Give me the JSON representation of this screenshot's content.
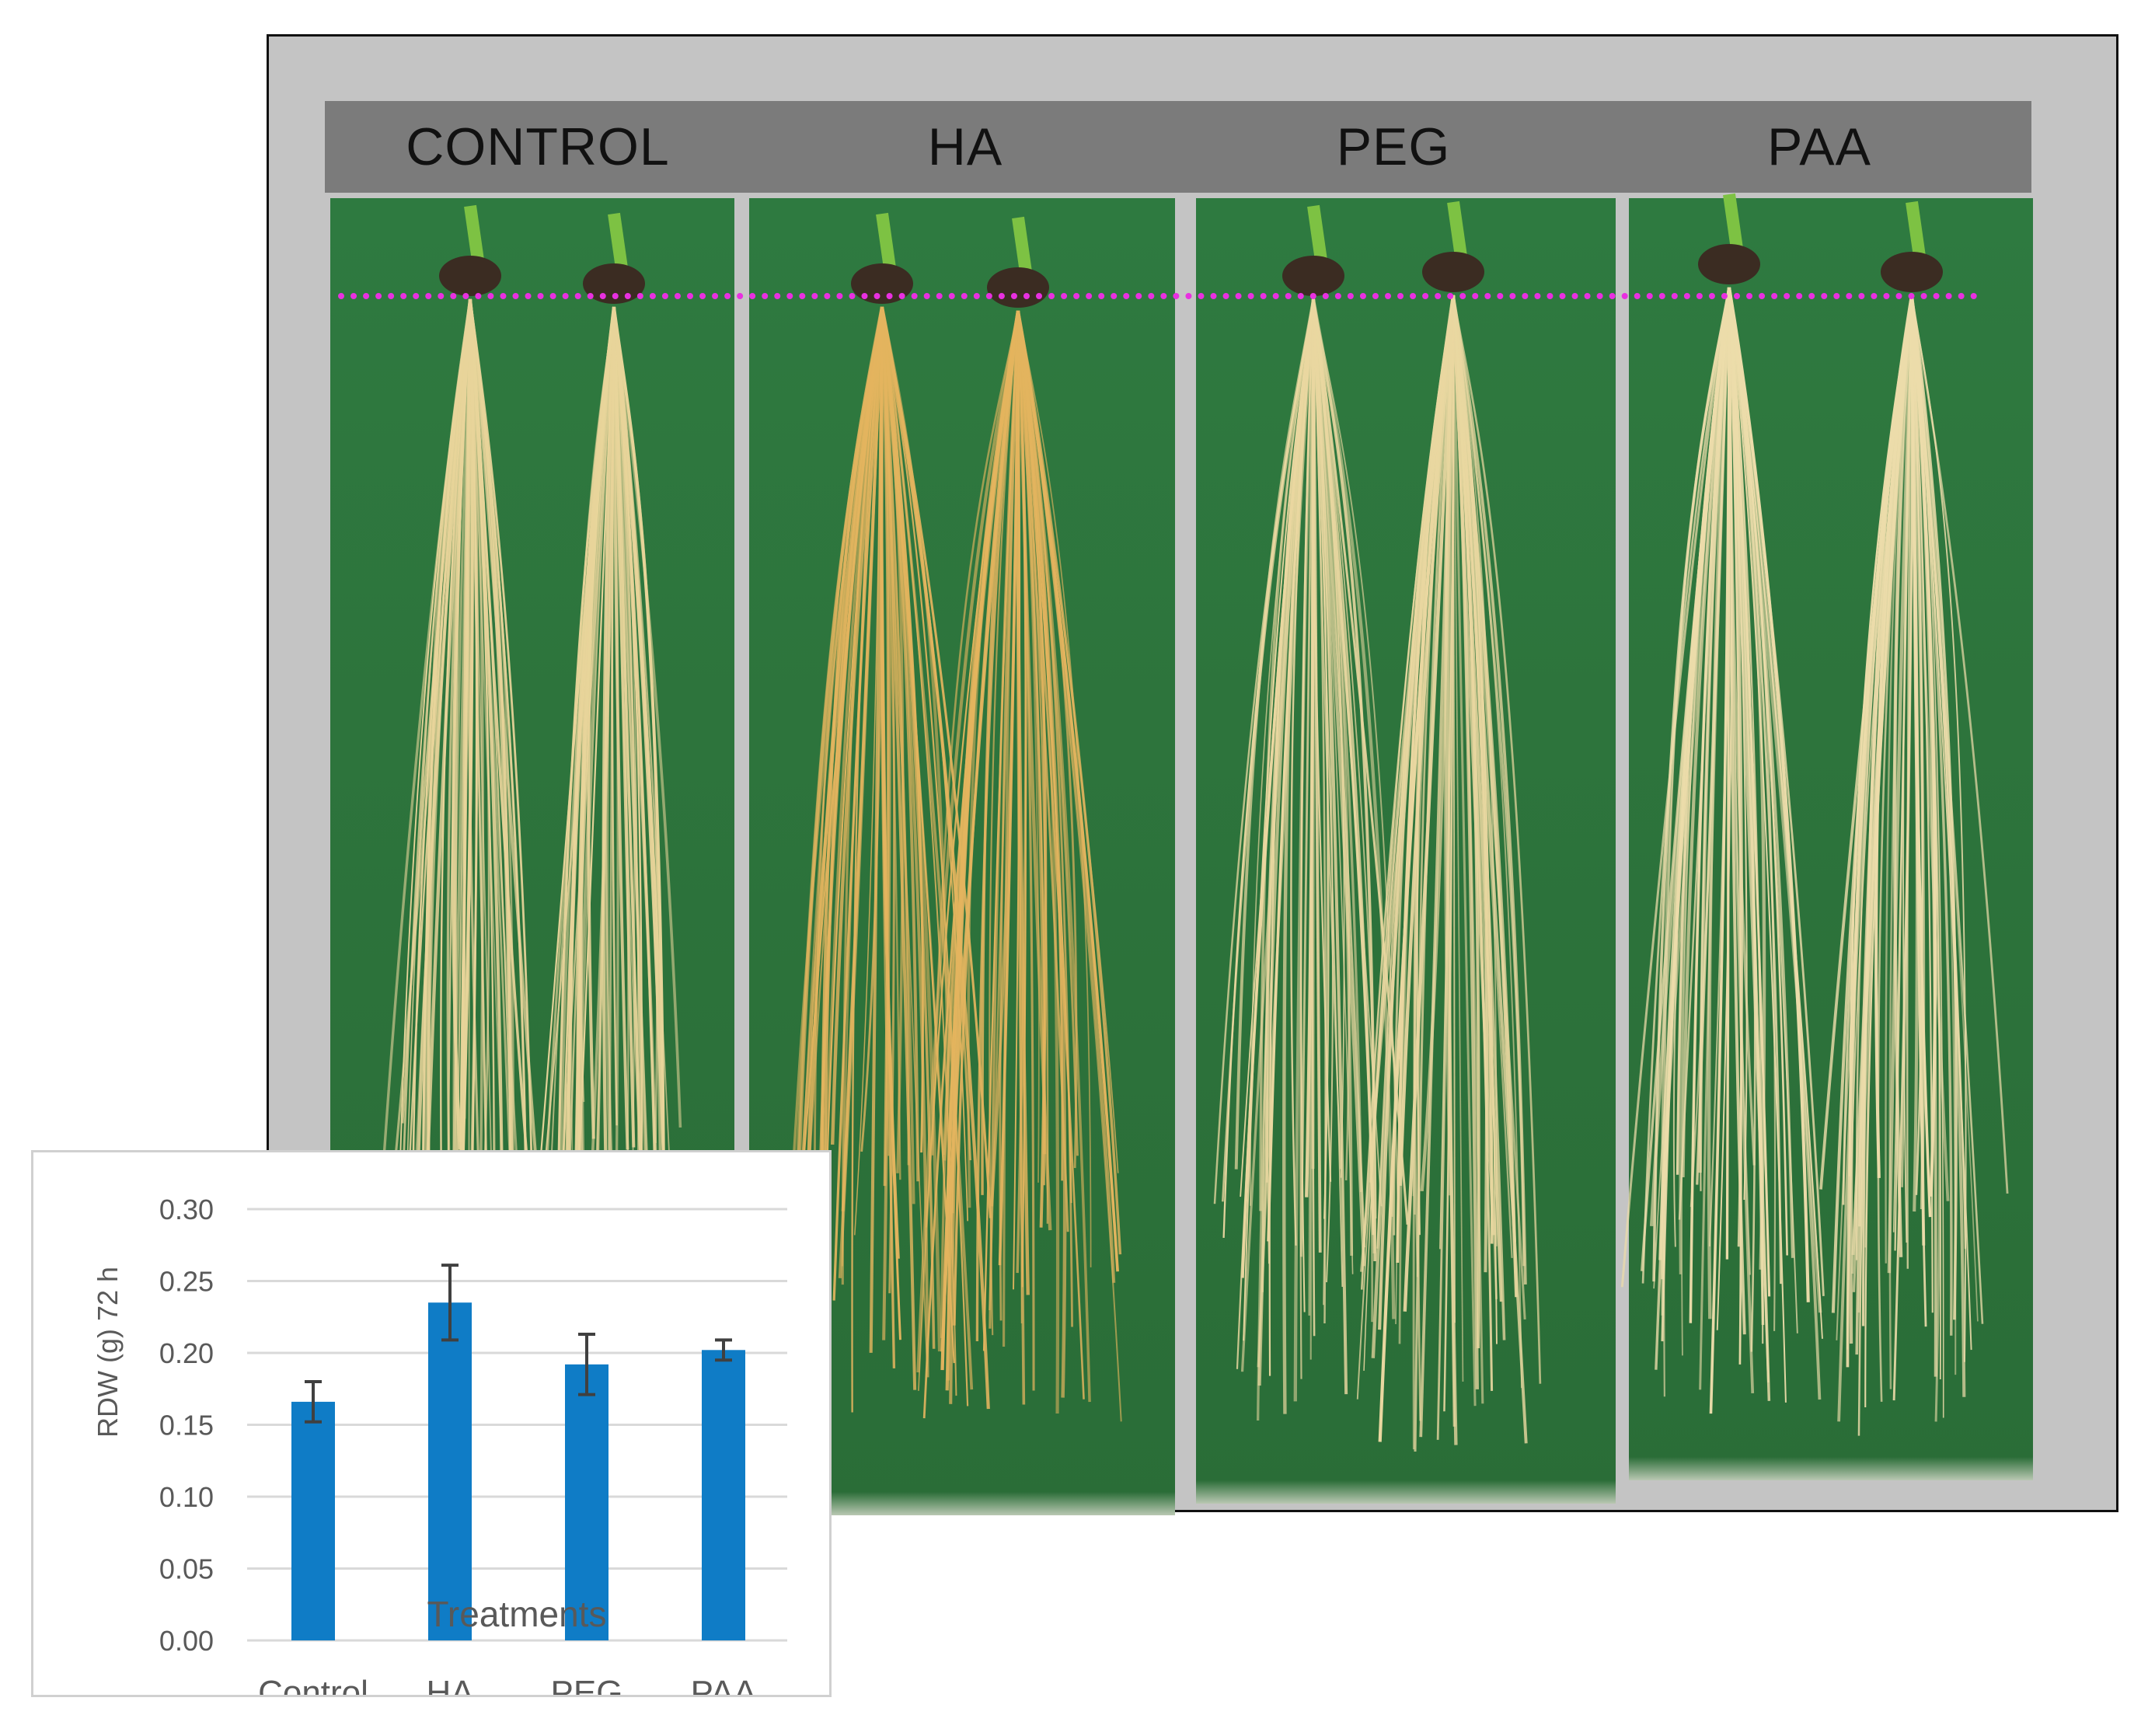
{
  "panels": [
    {
      "label": "CONTROL"
    },
    {
      "label": "HA"
    },
    {
      "label": "PEG"
    },
    {
      "label": "PAA"
    }
  ],
  "colors": {
    "frame": "#c4c4c4",
    "header_bar": "#7b7b7b",
    "tray_green": "#2e7a40",
    "root": "#e6cf8c",
    "guide_line": "#e830e0",
    "bar": "#0f7cc6",
    "error_bar": "#404040"
  },
  "chart_data": {
    "type": "bar",
    "categories": [
      "Control",
      "HA",
      "PEG",
      "PAA"
    ],
    "series": [
      {
        "values": [
          0.166,
          0.235,
          0.192,
          0.202
        ],
        "error": [
          0.014,
          0.026,
          0.021,
          0.007
        ]
      }
    ],
    "ylabel": "RDW (g) 72 h",
    "xlabel": "Treatments",
    "ylim": [
      0,
      0.3
    ],
    "yticks": [
      "0.30",
      "0.25",
      "0.20",
      "0.15",
      "0.10",
      "0.05",
      "0.00"
    ],
    "grid": true
  }
}
